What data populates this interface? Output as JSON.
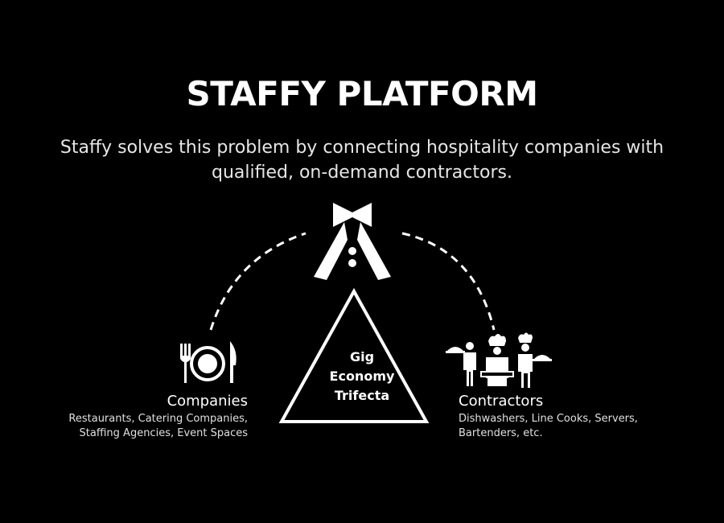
{
  "title": "STAFFY PLATFORM",
  "subtitle": "Staffy solves this problem by connecting hospitality companies with qualified, on-demand contractors.",
  "center": {
    "line1": "Gig",
    "line2": "Economy",
    "line3": "Trifecta"
  },
  "companies": {
    "title": "Companies",
    "description_line1": "Restaurants, Catering Companies,",
    "description_line2": "Staffing Agencies, Event Spaces",
    "icon": "plate-cutlery-icon"
  },
  "contractors": {
    "title": "Contractors",
    "description_line1": "Dishwashers, Line Cooks, Servers,",
    "description_line2": "Bartenders, etc.",
    "icon": "hospitality-workers-icon"
  },
  "platform": {
    "icon": "staffy-tuxedo-logo-icon"
  },
  "colors": {
    "background": "#000000",
    "foreground": "#ffffff"
  }
}
